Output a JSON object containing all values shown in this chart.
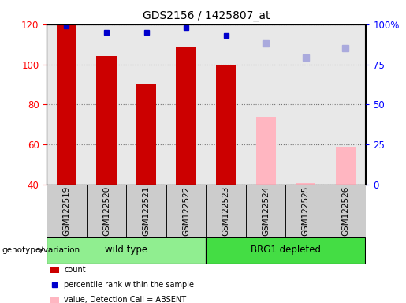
{
  "title": "GDS2156 / 1425807_at",
  "samples": [
    "GSM122519",
    "GSM122520",
    "GSM122521",
    "GSM122522",
    "GSM122523",
    "GSM122524",
    "GSM122525",
    "GSM122526"
  ],
  "bar_bottom": 40,
  "ylim_left": [
    40,
    120
  ],
  "ylim_right": [
    0,
    100
  ],
  "yticks_left": [
    40,
    60,
    80,
    100,
    120
  ],
  "yticks_right": [
    0,
    25,
    50,
    75,
    100
  ],
  "yticklabels_right": [
    "0",
    "25",
    "50",
    "75",
    "100%"
  ],
  "count_values": [
    120,
    104,
    90,
    109,
    100,
    null,
    null,
    null
  ],
  "count_color": "#cc0000",
  "count_absent_values": [
    null,
    null,
    null,
    null,
    null,
    74,
    41,
    59
  ],
  "count_absent_color": "#ffb6c1",
  "rank_values": [
    99,
    95,
    95,
    98,
    93,
    null,
    null,
    null
  ],
  "rank_color": "#0000cc",
  "rank_absent_values": [
    null,
    null,
    null,
    null,
    null,
    88,
    79,
    85
  ],
  "rank_absent_color": "#aaaadd",
  "background_color": "#ffffff",
  "plot_bg": "#e8e8e8",
  "label_box_color": "#cccccc",
  "wt_color": "#90ee90",
  "brg_color": "#44dd44"
}
